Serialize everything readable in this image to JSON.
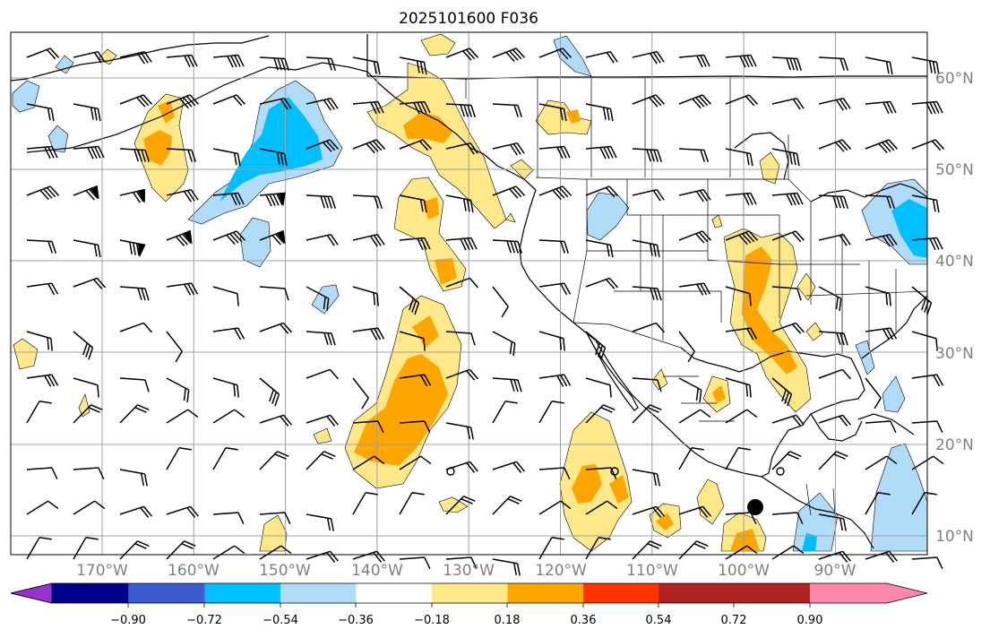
{
  "title": "2025101600 F036",
  "map": {
    "lon_range": [
      -180,
      -80
    ],
    "lat_range": [
      8,
      65
    ],
    "lat_labels": [
      "10°N",
      "20°N",
      "30°N",
      "40°N",
      "50°N",
      "60°N"
    ],
    "lon_labels": [
      "170°W",
      "160°W",
      "150°W",
      "140°W",
      "130°W",
      "120°W",
      "110°W",
      "100°W",
      "90°W"
    ],
    "gridlines": true
  },
  "colorbar": {
    "ticks": [
      "−0.90",
      "−0.72",
      "−0.54",
      "−0.36",
      "−0.18",
      "0.18",
      "0.36",
      "0.54",
      "0.72",
      "0.90"
    ],
    "colors": [
      "#9932cc",
      "#00008b",
      "#3a5bd1",
      "#00bfff",
      "#b0dcfa",
      "#ffffff",
      "#ffe88a",
      "#ffa500",
      "#ff3300",
      "#b22222",
      "#ff88aa"
    ],
    "extend": "both"
  },
  "colors": {
    "grid": "#a0a0a0",
    "coast": "#000000",
    "frame": "#000000",
    "land_fill": "#ffffff"
  }
}
